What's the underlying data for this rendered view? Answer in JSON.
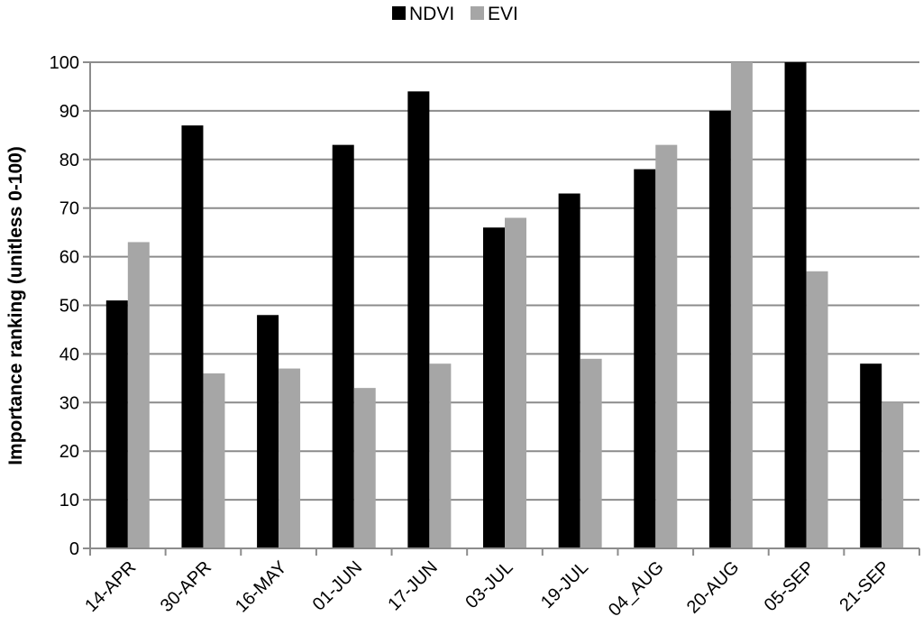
{
  "chart_data": {
    "type": "bar",
    "title": "",
    "xlabel": "",
    "ylabel": "Importance ranking (unitless 0-100)",
    "categories": [
      "14-APR",
      "30-APR",
      "16-MAY",
      "01-JUN",
      "17-JUN",
      "03-JUL",
      "19-JUL",
      "04_AUG",
      "20-AUG",
      "05-SEP",
      "21-SEP"
    ],
    "series": [
      {
        "name": "NDVI",
        "color": "#000000",
        "values": [
          51,
          87,
          48,
          83,
          94,
          66,
          73,
          78,
          90,
          100,
          38
        ]
      },
      {
        "name": "EVI",
        "color": "#a6a6a6",
        "values": [
          63,
          36,
          37,
          33,
          38,
          68,
          39,
          83,
          100,
          57,
          30
        ]
      }
    ],
    "ylim": [
      0,
      100
    ],
    "yticks": [
      0,
      10,
      20,
      30,
      40,
      50,
      60,
      70,
      80,
      90,
      100
    ],
    "grid": true,
    "legend_position": "top-center"
  }
}
